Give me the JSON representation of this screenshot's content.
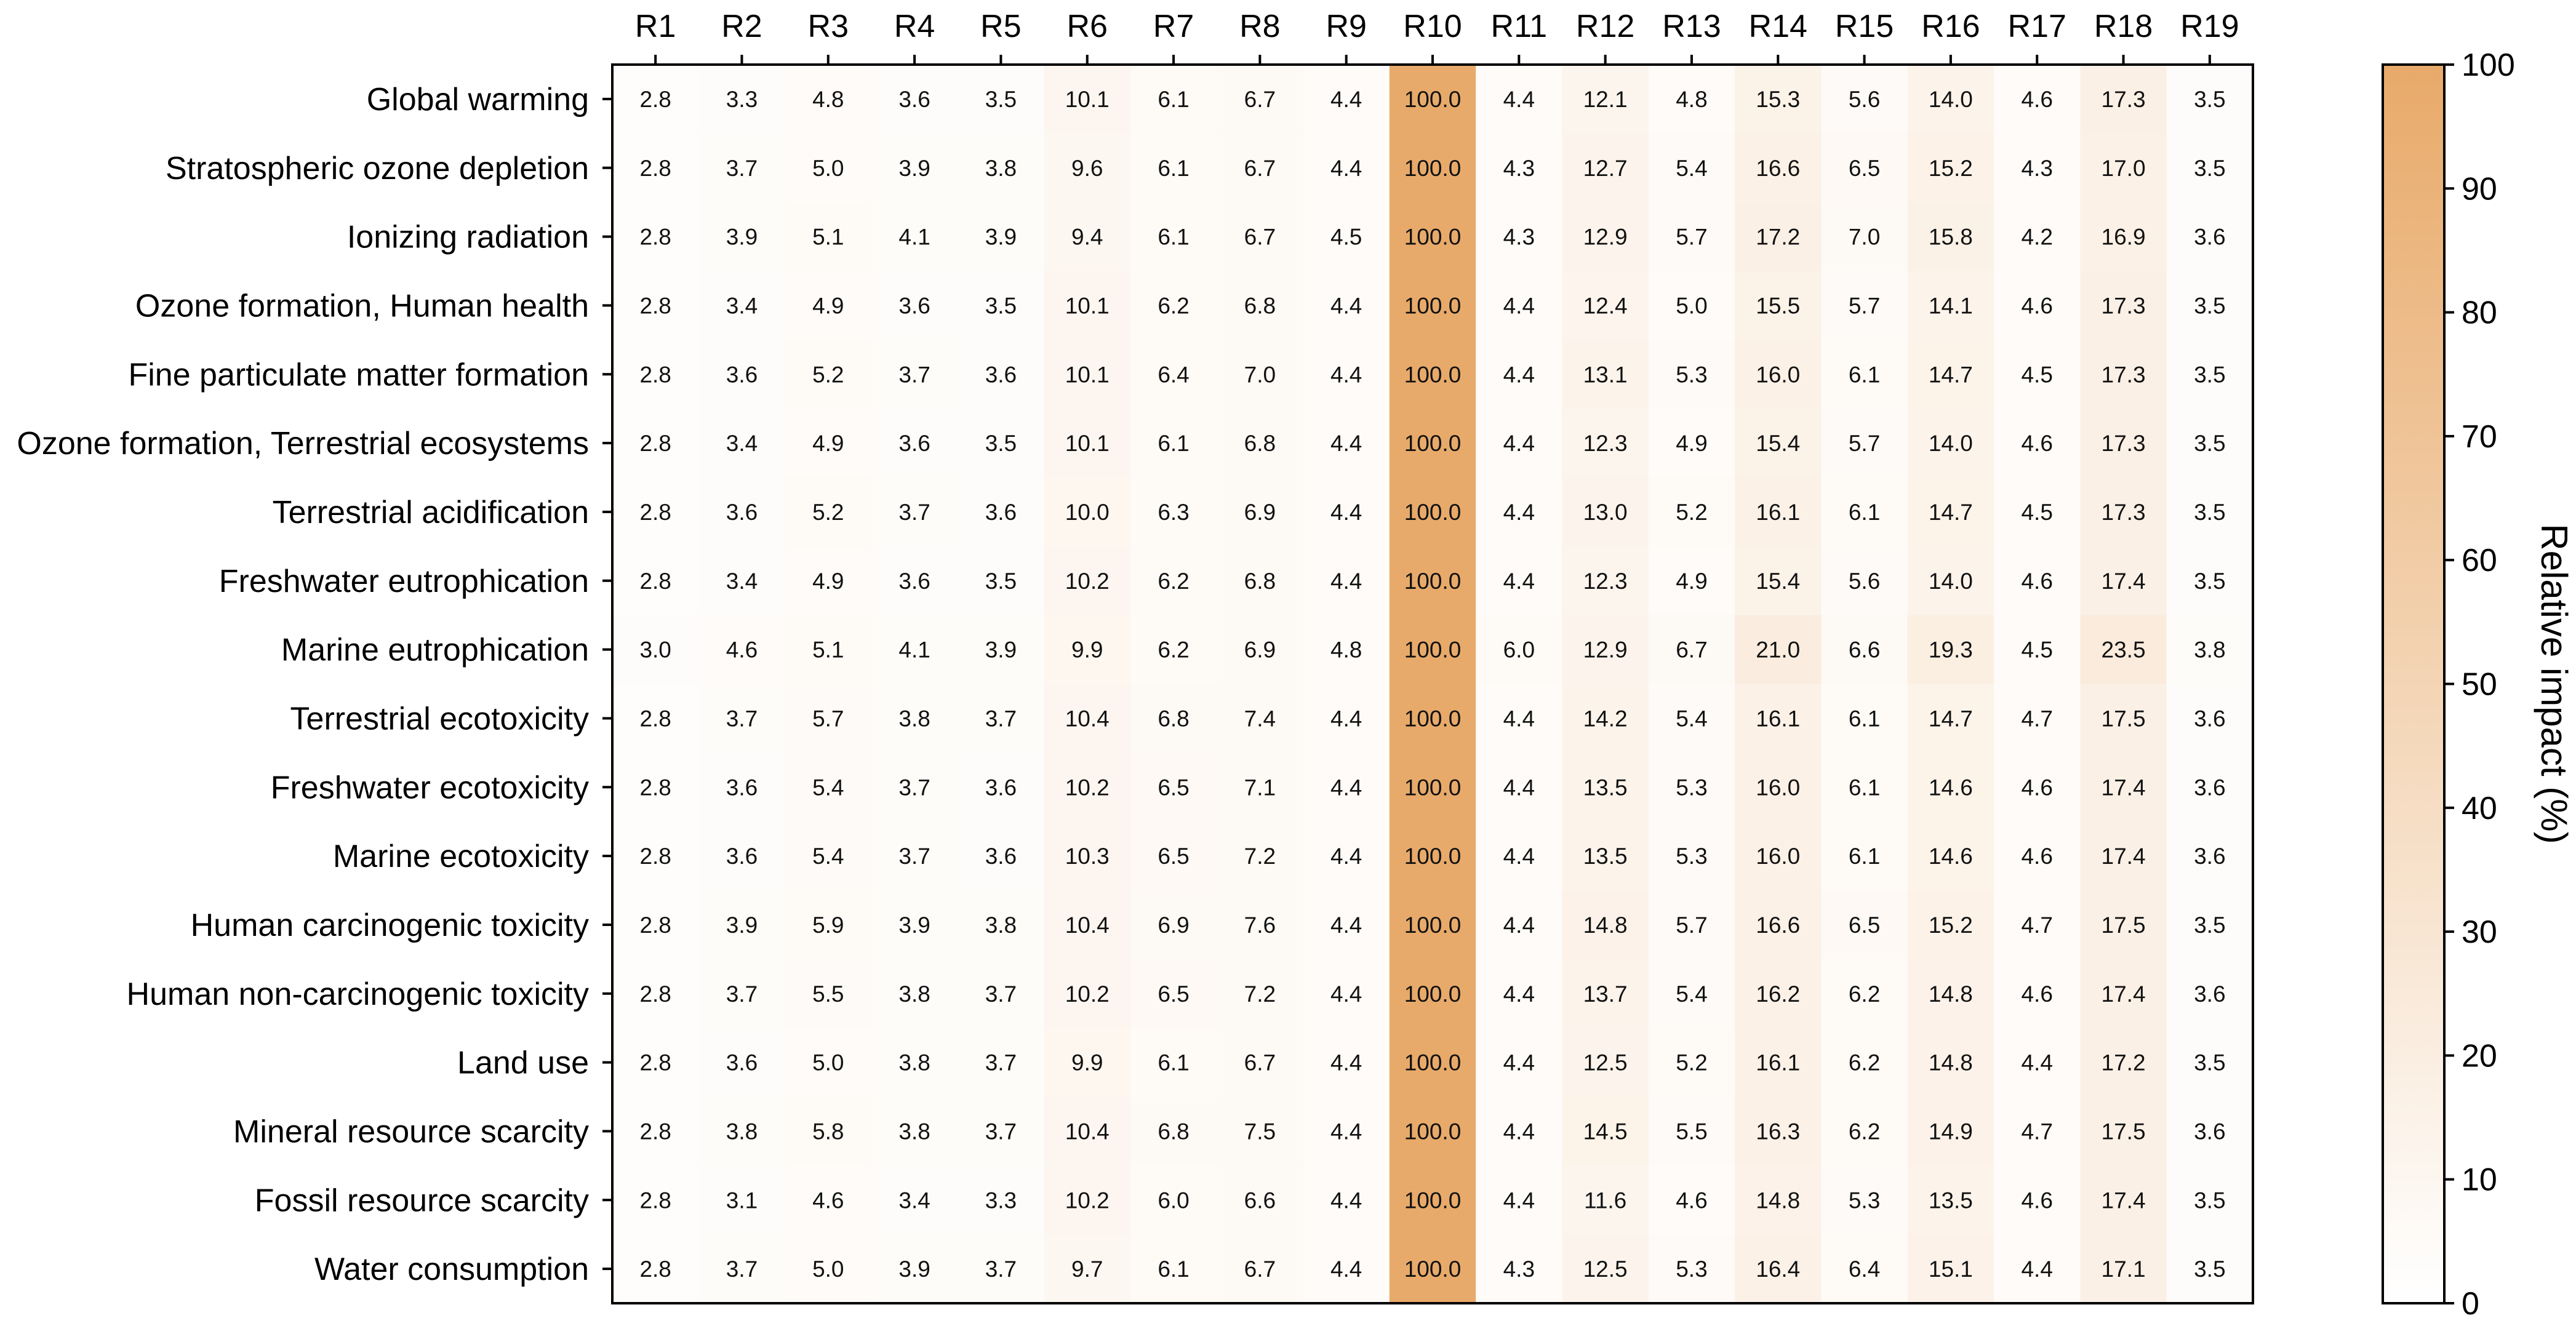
{
  "chart_data": {
    "type": "heatmap",
    "columns": [
      "R1",
      "R2",
      "R3",
      "R4",
      "R5",
      "R6",
      "R7",
      "R8",
      "R9",
      "R10",
      "R11",
      "R12",
      "R13",
      "R14",
      "R15",
      "R16",
      "R17",
      "R18",
      "R19"
    ],
    "rows": [
      "Global warming",
      "Stratospheric ozone depletion",
      "Ionizing radiation",
      "Ozone formation, Human health",
      "Fine particulate matter formation",
      "Ozone formation, Terrestrial ecosystems",
      "Terrestrial acidification",
      "Freshwater eutrophication",
      "Marine eutrophication",
      "Terrestrial ecotoxicity",
      "Freshwater ecotoxicity",
      "Marine ecotoxicity",
      "Human carcinogenic toxicity",
      "Human non-carcinogenic toxicity",
      "Land use",
      "Mineral resource scarcity",
      "Fossil resource scarcity",
      "Water consumption"
    ],
    "values": [
      [
        "2.8",
        "3.3",
        "4.8",
        "3.6",
        "3.5",
        "10.1",
        "6.1",
        "6.7",
        "4.4",
        "100.0",
        "4.4",
        "12.1",
        "4.8",
        "15.3",
        "5.6",
        "14.0",
        "4.6",
        "17.3",
        "3.5"
      ],
      [
        "2.8",
        "3.7",
        "5.0",
        "3.9",
        "3.8",
        "9.6",
        "6.1",
        "6.7",
        "4.4",
        "100.0",
        "4.3",
        "12.7",
        "5.4",
        "16.6",
        "6.5",
        "15.2",
        "4.3",
        "17.0",
        "3.5"
      ],
      [
        "2.8",
        "3.9",
        "5.1",
        "4.1",
        "3.9",
        "9.4",
        "6.1",
        "6.7",
        "4.5",
        "100.0",
        "4.3",
        "12.9",
        "5.7",
        "17.2",
        "7.0",
        "15.8",
        "4.2",
        "16.9",
        "3.6"
      ],
      [
        "2.8",
        "3.4",
        "4.9",
        "3.6",
        "3.5",
        "10.1",
        "6.2",
        "6.8",
        "4.4",
        "100.0",
        "4.4",
        "12.4",
        "5.0",
        "15.5",
        "5.7",
        "14.1",
        "4.6",
        "17.3",
        "3.5"
      ],
      [
        "2.8",
        "3.6",
        "5.2",
        "3.7",
        "3.6",
        "10.1",
        "6.4",
        "7.0",
        "4.4",
        "100.0",
        "4.4",
        "13.1",
        "5.3",
        "16.0",
        "6.1",
        "14.7",
        "4.5",
        "17.3",
        "3.5"
      ],
      [
        "2.8",
        "3.4",
        "4.9",
        "3.6",
        "3.5",
        "10.1",
        "6.1",
        "6.8",
        "4.4",
        "100.0",
        "4.4",
        "12.3",
        "4.9",
        "15.4",
        "5.7",
        "14.0",
        "4.6",
        "17.3",
        "3.5"
      ],
      [
        "2.8",
        "3.6",
        "5.2",
        "3.7",
        "3.6",
        "10.0",
        "6.3",
        "6.9",
        "4.4",
        "100.0",
        "4.4",
        "13.0",
        "5.2",
        "16.1",
        "6.1",
        "14.7",
        "4.5",
        "17.3",
        "3.5"
      ],
      [
        "2.8",
        "3.4",
        "4.9",
        "3.6",
        "3.5",
        "10.2",
        "6.2",
        "6.8",
        "4.4",
        "100.0",
        "4.4",
        "12.3",
        "4.9",
        "15.4",
        "5.6",
        "14.0",
        "4.6",
        "17.4",
        "3.5"
      ],
      [
        "3.0",
        "4.6",
        "5.1",
        "4.1",
        "3.9",
        "9.9",
        "6.2",
        "6.9",
        "4.8",
        "100.0",
        "6.0",
        "12.9",
        "6.7",
        "21.0",
        "6.6",
        "19.3",
        "4.5",
        "23.5",
        "3.8"
      ],
      [
        "2.8",
        "3.7",
        "5.7",
        "3.8",
        "3.7",
        "10.4",
        "6.8",
        "7.4",
        "4.4",
        "100.0",
        "4.4",
        "14.2",
        "5.4",
        "16.1",
        "6.1",
        "14.7",
        "4.7",
        "17.5",
        "3.6"
      ],
      [
        "2.8",
        "3.6",
        "5.4",
        "3.7",
        "3.6",
        "10.2",
        "6.5",
        "7.1",
        "4.4",
        "100.0",
        "4.4",
        "13.5",
        "5.3",
        "16.0",
        "6.1",
        "14.6",
        "4.6",
        "17.4",
        "3.6"
      ],
      [
        "2.8",
        "3.6",
        "5.4",
        "3.7",
        "3.6",
        "10.3",
        "6.5",
        "7.2",
        "4.4",
        "100.0",
        "4.4",
        "13.5",
        "5.3",
        "16.0",
        "6.1",
        "14.6",
        "4.6",
        "17.4",
        "3.6"
      ],
      [
        "2.8",
        "3.9",
        "5.9",
        "3.9",
        "3.8",
        "10.4",
        "6.9",
        "7.6",
        "4.4",
        "100.0",
        "4.4",
        "14.8",
        "5.7",
        "16.6",
        "6.5",
        "15.2",
        "4.7",
        "17.5",
        "3.5"
      ],
      [
        "2.8",
        "3.7",
        "5.5",
        "3.8",
        "3.7",
        "10.2",
        "6.5",
        "7.2",
        "4.4",
        "100.0",
        "4.4",
        "13.7",
        "5.4",
        "16.2",
        "6.2",
        "14.8",
        "4.6",
        "17.4",
        "3.6"
      ],
      [
        "2.8",
        "3.6",
        "5.0",
        "3.8",
        "3.7",
        "9.9",
        "6.1",
        "6.7",
        "4.4",
        "100.0",
        "4.4",
        "12.5",
        "5.2",
        "16.1",
        "6.2",
        "14.8",
        "4.4",
        "17.2",
        "3.5"
      ],
      [
        "2.8",
        "3.8",
        "5.8",
        "3.8",
        "3.7",
        "10.4",
        "6.8",
        "7.5",
        "4.4",
        "100.0",
        "4.4",
        "14.5",
        "5.5",
        "16.3",
        "6.2",
        "14.9",
        "4.7",
        "17.5",
        "3.6"
      ],
      [
        "2.8",
        "3.1",
        "4.6",
        "3.4",
        "3.3",
        "10.2",
        "6.0",
        "6.6",
        "4.4",
        "100.0",
        "4.4",
        "11.6",
        "4.6",
        "14.8",
        "5.3",
        "13.5",
        "4.6",
        "17.4",
        "3.5"
      ],
      [
        "2.8",
        "3.7",
        "5.0",
        "3.9",
        "3.7",
        "9.7",
        "6.1",
        "6.7",
        "4.4",
        "100.0",
        "4.3",
        "12.5",
        "5.3",
        "16.4",
        "6.4",
        "15.1",
        "4.4",
        "17.1",
        "3.5"
      ]
    ],
    "colorbar": {
      "label": "Relative impact (%)",
      "ticks": [
        "0",
        "10",
        "20",
        "30",
        "40",
        "50",
        "60",
        "70",
        "80",
        "90",
        "100"
      ],
      "range": [
        0,
        100
      ],
      "color_low": "#ffffff",
      "color_high": "#e8aa6a"
    },
    "grid": false
  }
}
